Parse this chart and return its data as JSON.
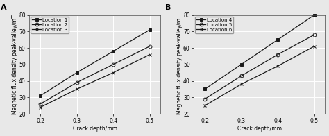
{
  "x": [
    0.2,
    0.3,
    0.4,
    0.5
  ],
  "panel_A": {
    "label": "A",
    "series": [
      {
        "name": "Location 1",
        "y": [
          31,
          45,
          58,
          71
        ],
        "marker": "s",
        "fillstyle": "full"
      },
      {
        "name": "Location 2",
        "y": [
          26,
          39,
          50,
          61
        ],
        "marker": "o",
        "fillstyle": "none"
      },
      {
        "name": "Location 3",
        "y": [
          24,
          35,
          45,
          56
        ],
        "marker": "x",
        "fillstyle": "full"
      }
    ],
    "ylim": [
      20,
      80
    ],
    "yticks": [
      20,
      30,
      40,
      50,
      60,
      70,
      80
    ],
    "ylabel": "Magnetic flux density peak-valley/mT",
    "xlabel": "Crack depth/mm"
  },
  "panel_B": {
    "label": "B",
    "series": [
      {
        "name": "Location 4",
        "y": [
          35,
          50,
          65,
          80
        ],
        "marker": "s",
        "fillstyle": "full"
      },
      {
        "name": "Location 5",
        "y": [
          29,
          43,
          56,
          68
        ],
        "marker": "o",
        "fillstyle": "none"
      },
      {
        "name": "Location 6",
        "y": [
          25,
          38,
          49,
          61
        ],
        "marker": "x",
        "fillstyle": "full"
      }
    ],
    "ylim": [
      20,
      80
    ],
    "yticks": [
      20,
      30,
      40,
      50,
      60,
      70,
      80
    ],
    "ylabel": "Magnetic flux density peak-valley/mT",
    "xlabel": "Crack depth/mm"
  },
  "line_color": "#1a1a1a",
  "bg_color": "#e8e8e8",
  "plot_bg_color": "#e8e8e8",
  "grid_color": "#ffffff",
  "marker_size": 3.5,
  "line_width": 0.9,
  "label_font_size": 5.5,
  "legend_font_size": 5.0,
  "tick_font_size": 5.5,
  "panel_label_fontsize": 8.0
}
